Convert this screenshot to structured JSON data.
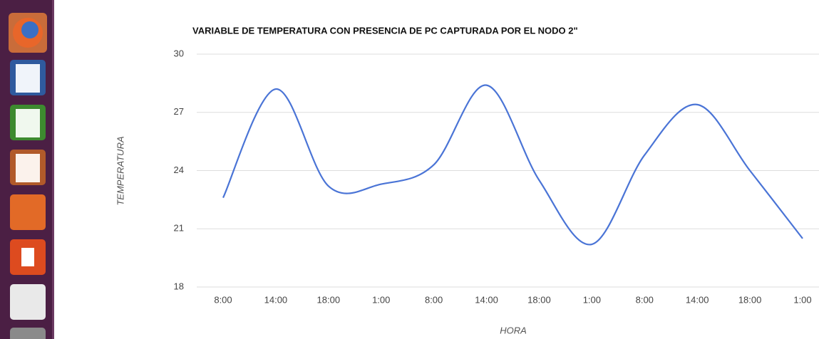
{
  "chart_data": {
    "type": "line",
    "title": "VARIABLE DE TEMPERATURA CON PRESENCIA DE PC CAPTURADA POR EL NODO 2\"",
    "x_label": "HORA",
    "y_label": "TEMPERATURA",
    "categories": [
      "8:00",
      "14:00",
      "18:00",
      "1:00",
      "8:00",
      "14:00",
      "18:00",
      "1:00",
      "8:00",
      "14:00",
      "18:00",
      "1:00"
    ],
    "values": [
      22.6,
      28.2,
      23.2,
      23.3,
      24.3,
      28.4,
      23.5,
      20.2,
      24.8,
      27.4,
      24.0,
      20.5
    ],
    "color": "#4a74d6",
    "ylim": [
      18,
      30
    ],
    "yticks": [
      18,
      21,
      24,
      27,
      30
    ],
    "grid": true
  }
}
